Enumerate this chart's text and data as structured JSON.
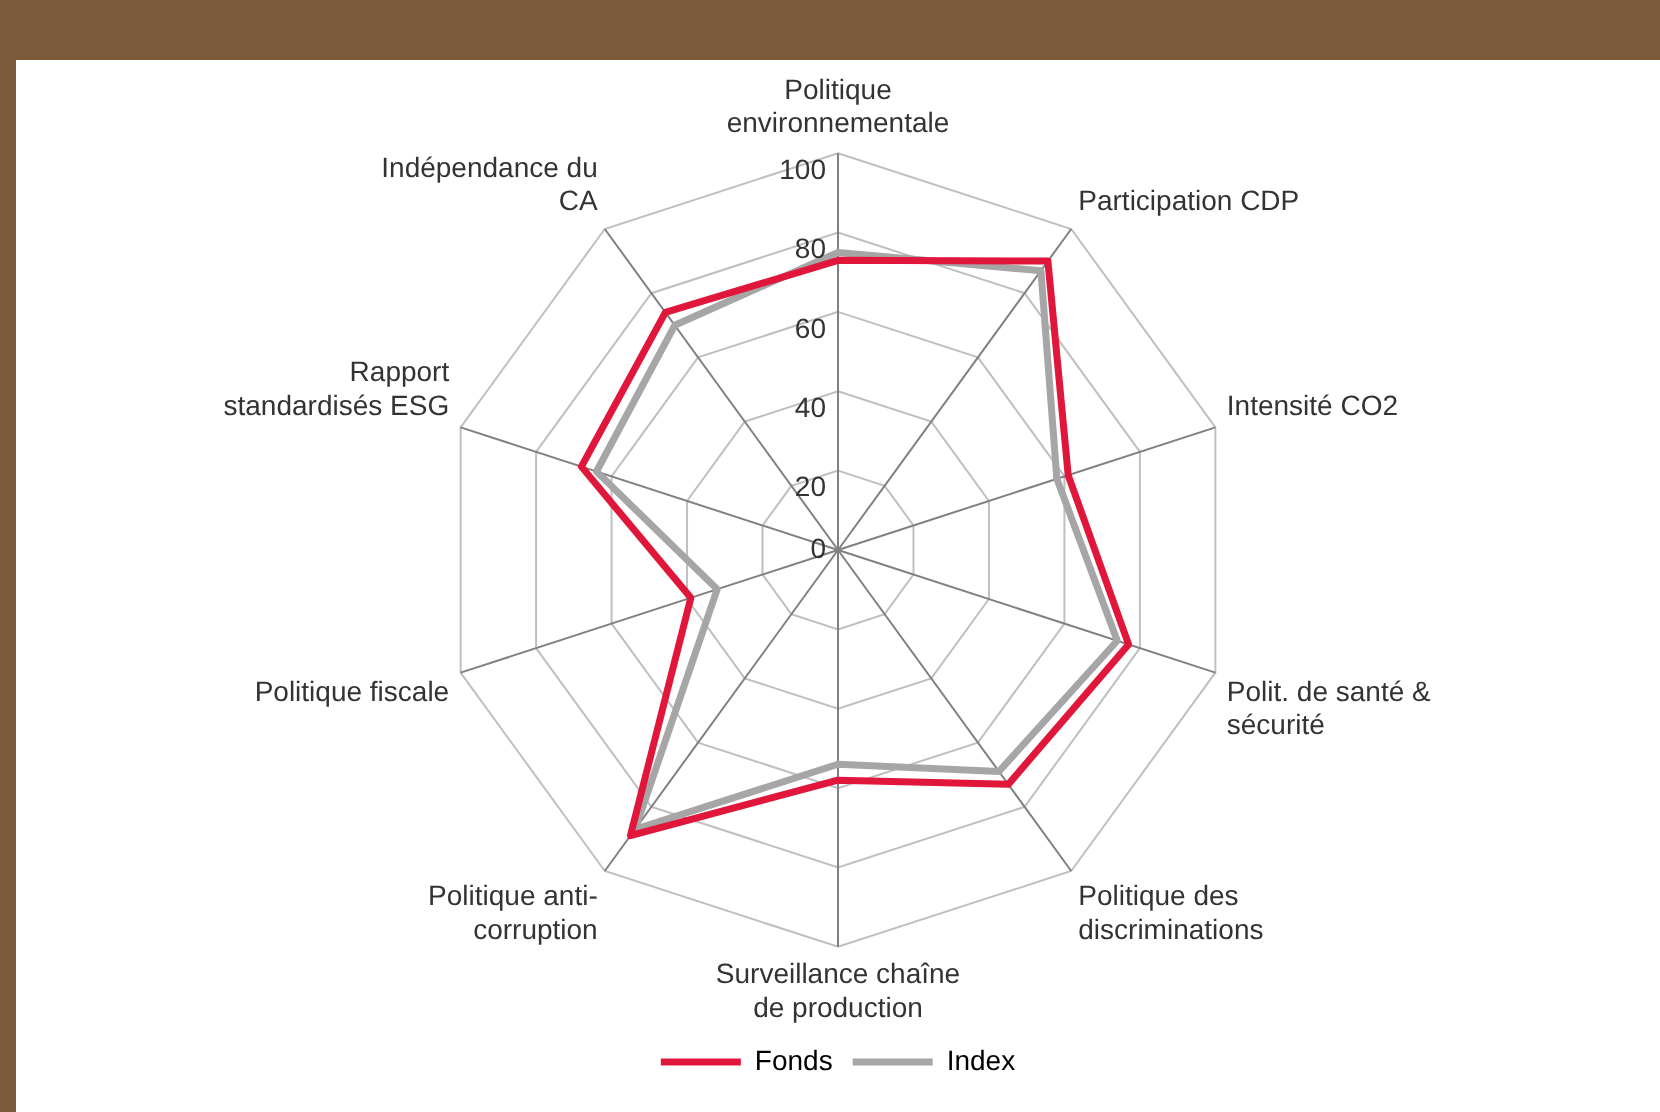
{
  "chart_data": {
    "type": "radar",
    "categories": [
      "Politique\nenvironnementale",
      "Participation CDP",
      "Intensité CO2",
      "Polit. de santé &\nsécurité",
      "Politique des\ndiscriminations",
      "Surveillance chaîne\nde production",
      "Politique anti-\ncorruption",
      "Politique fiscale",
      "Rapport\nstandardisés ESG",
      "Indépendance du\nCA"
    ],
    "series": [
      {
        "name": "Fonds",
        "color": "#e0163a",
        "values": [
          73,
          90,
          61,
          77,
          73,
          58,
          89,
          39,
          68,
          74
        ]
      },
      {
        "name": "Index",
        "color": "#a6a6a6",
        "values": [
          75,
          87,
          58,
          74,
          69,
          54,
          87,
          32,
          64,
          70
        ]
      }
    ],
    "ylim": [
      0,
      100
    ],
    "yticks": [
      0,
      20,
      40,
      60,
      80,
      100
    ],
    "grid": true,
    "legend": "bottom",
    "marker": "none",
    "line_style": "solid"
  }
}
